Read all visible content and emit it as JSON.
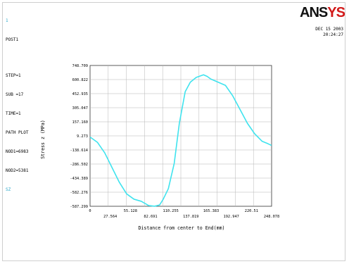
{
  "info": {
    "index": "1",
    "title": "POST1",
    "lines": [
      "STEP=1",
      "SUB =17",
      "TIME=1",
      "PATH PLOT",
      "NOD1=6983",
      "NOD2=5381"
    ],
    "series_label": "SZ"
  },
  "brand": {
    "logo_text": "ANSYS",
    "logo_color": "#d21a1a"
  },
  "timestamp": {
    "date": "DEC 15 2003",
    "time": "20:24:27"
  },
  "chart_data": {
    "type": "line",
    "title": "",
    "xlabel": "Distance from center to End(mm)",
    "ylabel": "Stress z (MPa)",
    "xlim": [
      0,
      248.078
    ],
    "ylim": [
      -587.299,
      748.709
    ],
    "x_ticks_top": [
      "0",
      "55.128",
      "110.255",
      "165.383",
      "220.51"
    ],
    "x_ticks_bottom": [
      "27.564",
      "82.691",
      "137.819",
      "192.947",
      "248.078"
    ],
    "y_ticks": [
      "748.709",
      "600.822",
      "452.935",
      "305.047",
      "157.160",
      "9.273",
      "-138.614",
      "-286.502",
      "-434.389",
      "-582.276",
      "-587.299"
    ],
    "line_color": "#3fe3ee",
    "grid": true,
    "series": [
      {
        "x": [
          0,
          10,
          20,
          30,
          40,
          50,
          60,
          70,
          80,
          88,
          95,
          100,
          107,
          115,
          122,
          130,
          137,
          145,
          155,
          160,
          165,
          175,
          185,
          195,
          205,
          215,
          225,
          235,
          242,
          248
        ],
        "y": [
          70,
          20,
          -80,
          -220,
          -360,
          -470,
          -520,
          -540,
          -580,
          -587,
          -575,
          -520,
          -420,
          -180,
          200,
          500,
          590,
          635,
          660,
          645,
          620,
          590,
          560,
          460,
          330,
          200,
          100,
          30,
          10,
          -10
        ]
      }
    ]
  }
}
